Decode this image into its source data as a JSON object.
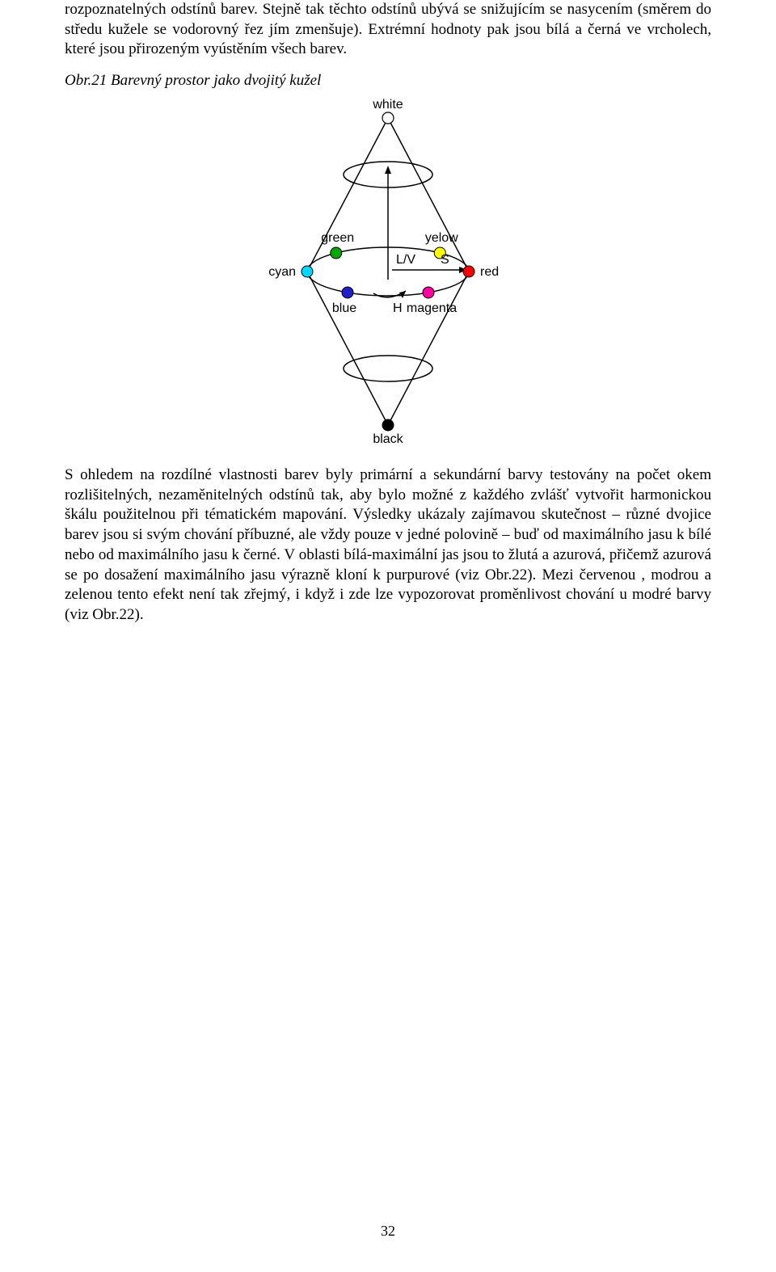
{
  "paragraphs": {
    "p1": "rozpoznatelných odstínů barev. Stejně tak těchto odstínů ubývá se snižujícím se nasycením (směrem do středu kužele se vodorovný řez jím zmenšuje). Extrémní hodnoty pak jsou bílá a černá ve vrcholech, které jsou přirozeným vyústěním všech barev.",
    "caption": "Obr.21 Barevný prostor jako dvojitý kužel",
    "p2": "S ohledem na rozdílné vlastnosti barev byly primární a sekundární barvy testovány na počet okem rozlišitelných, nezaměnitelných odstínů tak, aby bylo možné z každého zvlášť vytvořit harmonickou škálu použitelnou při tématickém mapování. Výsledky ukázaly zajímavou skutečnost – různé dvojice barev jsou si svým chování příbuzné, ale vždy pouze v jedné polovině – buď od maximálního jasu k bílé nebo od maximálního jasu k černé. V oblasti bílá-maximální jas jsou to žlutá a azurová, přičemž azurová se po dosažení maximálního jasu výrazně kloní k purpurové (viz Obr.22). Mezi červenou , modrou a zelenou tento efekt není tak zřejmý, i když i zde lze vypozorovat proměnlivost chování u modré barvy (viz Obr.22)."
  },
  "page_number": "32",
  "diagram": {
    "type": "double-cone",
    "labels": {
      "top": "white",
      "bottom": "black",
      "green": "green",
      "yellow": "yelow",
      "cyan": "cyan",
      "red": "red",
      "blue": "blue",
      "magenta": "magenta",
      "lv": "L/V",
      "h": "H",
      "s": "S"
    },
    "colors": {
      "white": "#ffffff",
      "black": "#000000",
      "green": "#00a800",
      "yellow": "#ffff00",
      "cyan": "#00d8ff",
      "red": "#ff0000",
      "blue": "#2020c8",
      "magenta": "#ff00a0",
      "stroke": "#000000",
      "background": "#ffffff"
    },
    "font_size": 16,
    "dot_radius": 7,
    "stroke_width": 1.5
  }
}
